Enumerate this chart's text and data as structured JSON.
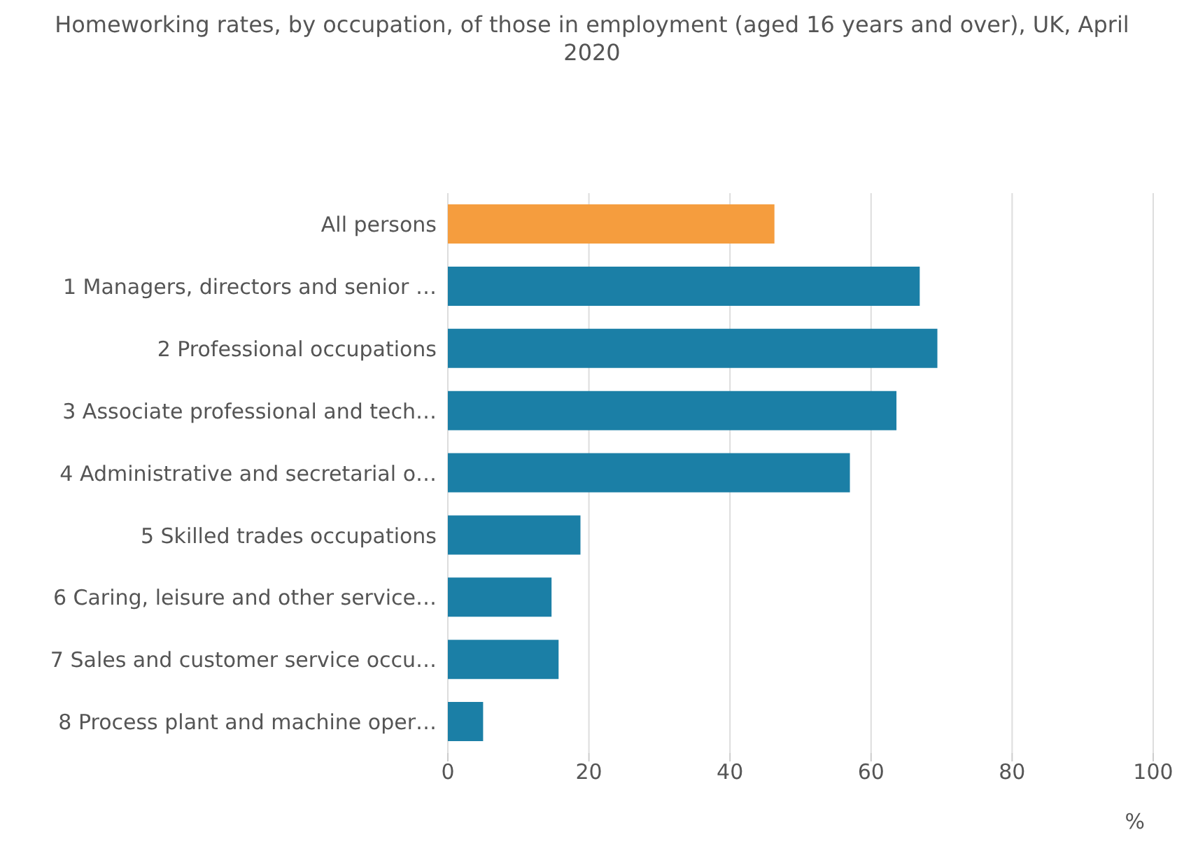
{
  "chart_data": {
    "type": "bar",
    "orientation": "horizontal",
    "title": "Homeworking rates, by occupation, of those in employment (aged 16 years and over), UK, April 2020",
    "xlabel": "%",
    "categories": [
      "All persons",
      "1 Managers, directors and senior …",
      "2 Professional occupations",
      "3 Associate professional and tech…",
      "4 Administrative and secretarial o…",
      "5 Skilled trades occupations",
      "6 Caring, leisure and other service…",
      "7 Sales and customer service occu…",
      "8 Process plant and machine oper…"
    ],
    "values": [
      46.3,
      66.9,
      69.4,
      63.6,
      57.0,
      18.8,
      14.7,
      15.7,
      5.0
    ],
    "colors": [
      "#f59d3e",
      "#1b7fa6",
      "#1b7fa6",
      "#1b7fa6",
      "#1b7fa6",
      "#1b7fa6",
      "#1b7fa6",
      "#1b7fa6",
      "#1b7fa6"
    ],
    "xlim": [
      0,
      100
    ],
    "xticks": [
      0,
      20,
      40,
      60,
      80,
      100
    ],
    "grid": "x"
  }
}
